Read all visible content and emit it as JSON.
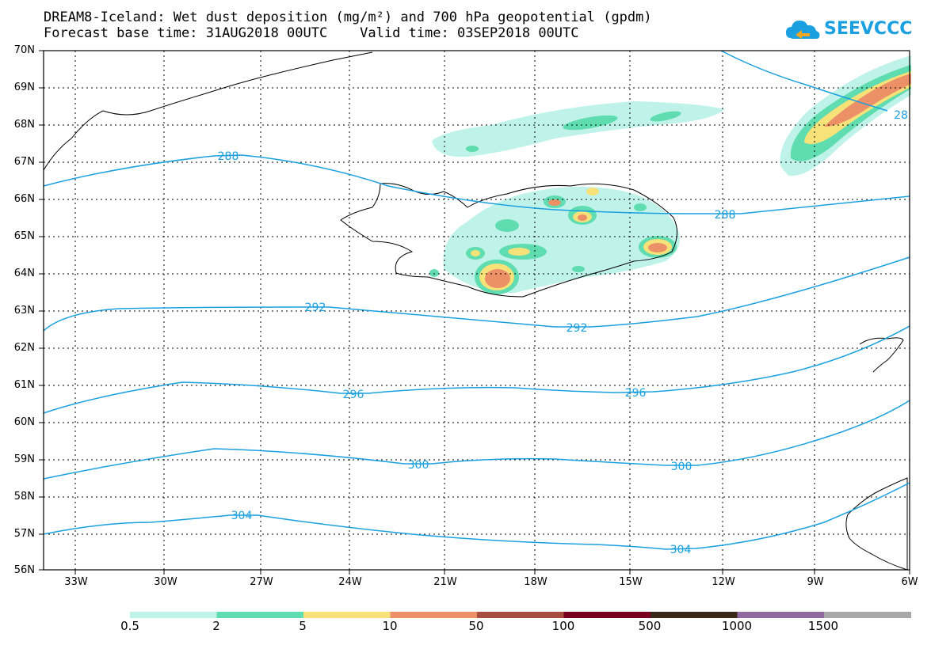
{
  "header": {
    "title_line1": "DREAM8-Iceland: Wet dust deposition (mg/m²) and 700 hPa geopotential (gpdm)",
    "title_line2": "Forecast base time: 31AUG2018 00UTC    Valid time: 03SEP2018 00UTC"
  },
  "logo": {
    "text": "SEEVCCC",
    "color": "#1aa0e0"
  },
  "map": {
    "lat_labels": [
      "70N",
      "69N",
      "68N",
      "67N",
      "66N",
      "65N",
      "64N",
      "63N",
      "62N",
      "61N",
      "60N",
      "59N",
      "58N",
      "57N",
      "56N"
    ],
    "lon_labels": [
      "33W",
      "30W",
      "27W",
      "24W",
      "21W",
      "18W",
      "15W",
      "12W",
      "9W",
      "6W"
    ],
    "contour_color": "#1aa0e0",
    "contour_labels": [
      "288",
      "288",
      "28",
      "292",
      "292",
      "296",
      "296",
      "300",
      "300",
      "304",
      "304"
    ]
  },
  "legend": {
    "colors": [
      "#bff2e8",
      "#5fdcb0",
      "#f7e27a",
      "#ec9068",
      "#a84e40",
      "#7a0020",
      "#3a2818",
      "#906aa0",
      "#a8a8a8"
    ],
    "labels": [
      "0.5",
      "2",
      "5",
      "10",
      "50",
      "100",
      "500",
      "1000",
      "1500"
    ]
  }
}
